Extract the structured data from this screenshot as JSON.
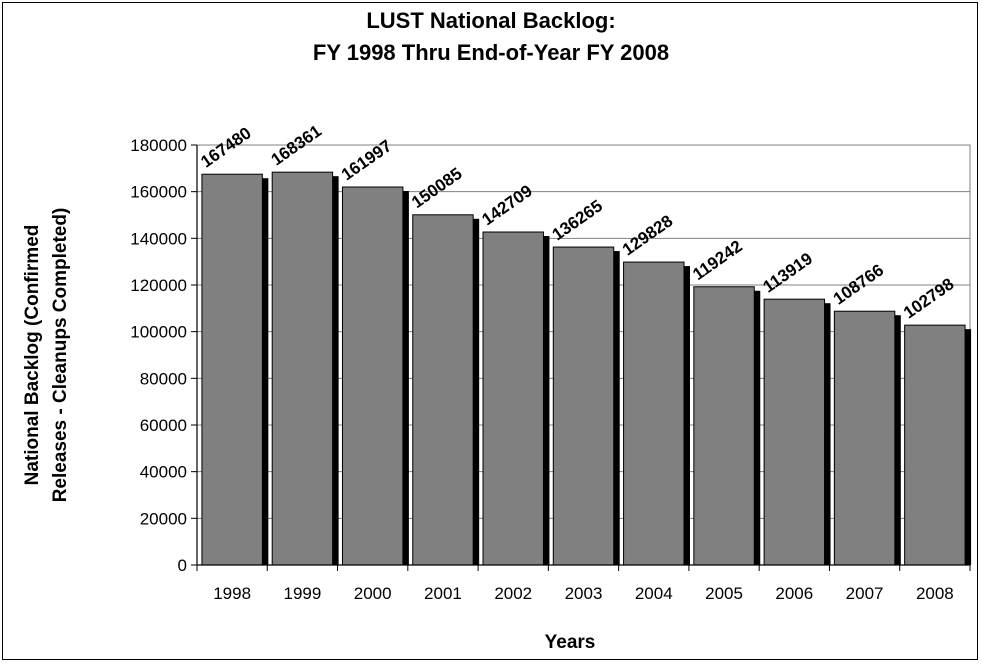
{
  "chart_data": {
    "type": "bar",
    "title": "LUST National Backlog:",
    "subtitle": "FY 1998 Thru End-of-Year FY 2008",
    "xlabel": "Years",
    "ylabel_line1": "National Backlog (Confirmed",
    "ylabel_line2": "Releases - Cleanups Completed)",
    "categories": [
      "1998",
      "1999",
      "2000",
      "2001",
      "2002",
      "2003",
      "2004",
      "2005",
      "2006",
      "2007",
      "2008"
    ],
    "values": [
      167480,
      168361,
      161997,
      150085,
      142709,
      136265,
      129828,
      119242,
      113919,
      108766,
      102798
    ],
    "data_labels": [
      "167480",
      "168361",
      "161997",
      "150085",
      "142709",
      "136265",
      "129828",
      "119242",
      "113919",
      "108766",
      "102798"
    ],
    "ylim": [
      0,
      180000
    ],
    "yticks": [
      0,
      20000,
      40000,
      60000,
      80000,
      100000,
      120000,
      140000,
      160000,
      180000
    ],
    "ytick_labels": [
      "0",
      "20000",
      "40000",
      "60000",
      "80000",
      "100000",
      "120000",
      "140000",
      "160000",
      "180000"
    ],
    "grid": true,
    "legend": "none",
    "colors": {
      "bar": "#808080",
      "shadow": "#000000",
      "grid": "#808080"
    }
  }
}
